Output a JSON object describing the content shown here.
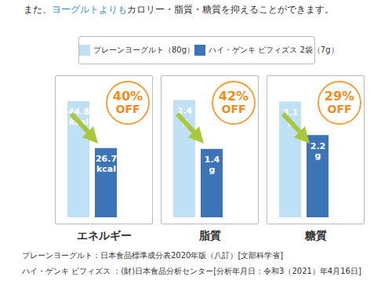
{
  "header": [
    "また、",
    "ヨーグルトよりも",
    "カロリー・脂質・糖質を抑えることができます。"
  ],
  "chart_data": [
    {
      "type": "bar",
      "title": "エネルギー",
      "categories": [
        "プレーンヨーグルト（80g）",
        "ハイ・ゲンキ ビフィズス 2袋（7g）"
      ],
      "values": [
        44.8,
        26.7
      ],
      "value_labels": [
        "44.8 kcal",
        "26.7 kcal"
      ],
      "colors": [
        "#bfe0f5",
        "#3d74b8"
      ],
      "ylim": [
        0,
        49
      ],
      "tick_labels": false,
      "data_labels": true,
      "legend": "top",
      "annotations": [
        "40% OFF"
      ]
    },
    {
      "type": "bar",
      "title": "脂質",
      "categories": [
        "プレーンヨーグルト（80g）",
        "ハイ・ゲンキ ビフィズス 2袋（7g）"
      ],
      "values": [
        2.4,
        1.4
      ],
      "value_labels": [
        "2.4 g",
        "1.4 g"
      ],
      "colors": [
        "#bfe0f5",
        "#3d74b8"
      ],
      "ylim": [
        0,
        2.6
      ],
      "tick_labels": false,
      "data_labels": true,
      "annotations": [
        "42% OFF"
      ]
    },
    {
      "type": "bar",
      "title": "糖質",
      "categories": [
        "プレーンヨーグルト（80g）",
        "ハイ・ゲンキ ビフィズス 2袋（7g）"
      ],
      "values": [
        3.1,
        2.2
      ],
      "value_labels": [
        "3.1 g",
        "2.2 g"
      ],
      "colors": [
        "#bfe0f5",
        "#3d74b8"
      ],
      "ylim": [
        0,
        3.4
      ],
      "tick_labels": false,
      "data_labels": true,
      "annotations": [
        "29% OFF"
      ]
    }
  ],
  "notes": [
    "プレーンヨーグルト：日本食品標準成分表2020年版（八訂）[文部科学省]",
    "ハイ・ゲンキ ビフィズス ：(財)日本食品分析センター[分析年月日：令和3（2021）年4月16日]"
  ]
}
